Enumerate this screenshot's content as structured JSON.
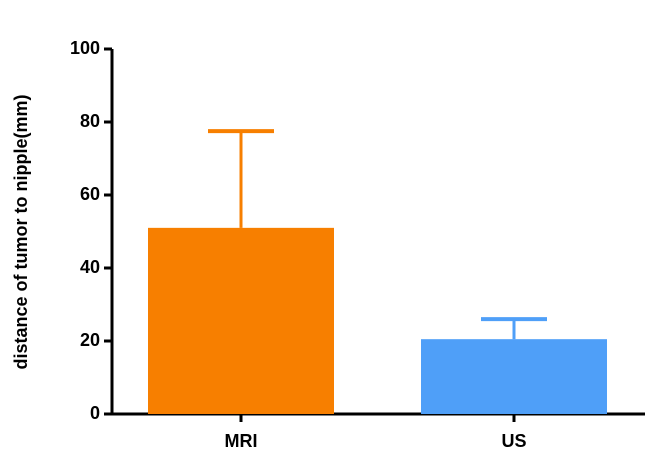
{
  "chart_data": {
    "type": "bar",
    "y_label": "distance of tumor to nipple(mm)",
    "categories": [
      "MRI",
      "US"
    ],
    "values": [
      51,
      20.5
    ],
    "errors": [
      26.5,
      5.5
    ],
    "colors": [
      "#f77f00",
      "#4f9ff8"
    ],
    "ylim": [
      0,
      100
    ],
    "yticks": [
      0,
      20,
      40,
      60,
      80,
      100
    ]
  }
}
